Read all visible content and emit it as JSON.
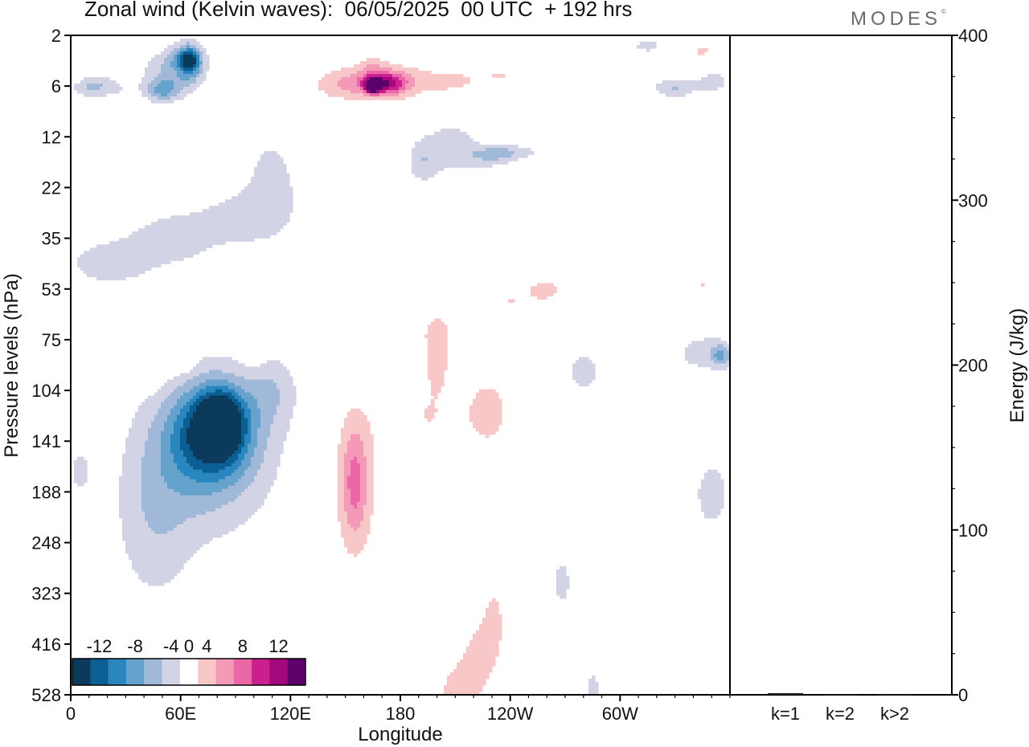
{
  "title": "Zonal wind (Kelvin waves):  06/05/2025  00 UTC  + 192 hrs",
  "brand": "MODES",
  "brand_mark": "©",
  "colors": {
    "neg": [
      "#0b3a5c",
      "#0c5f92",
      "#2a86bf",
      "#66a3cc",
      "#a1b9d8",
      "#d2d4e6"
    ],
    "pos": [
      "#f8c8c8",
      "#f49ab8",
      "#ec67a8",
      "#cc1f8f",
      "#a3087c",
      "#5c006a"
    ],
    "zero": "#ffffff"
  },
  "chart_data": [
    {
      "type": "heatmap",
      "title": "Zonal wind (Kelvin waves):  06/05/2025  00 UTC  + 192 hrs",
      "xlabel": "Longitude",
      "ylabel": "Pressure levels (hPa)",
      "x_ticks": [
        "0",
        "60E",
        "120E",
        "180",
        "120W",
        "60W"
      ],
      "x_tick_degrees": [
        0,
        60,
        120,
        180,
        240,
        300
      ],
      "xlim": [
        0,
        360
      ],
      "y_levels": [
        2,
        6,
        12,
        22,
        35,
        53,
        75,
        104,
        141,
        188,
        248,
        323,
        416,
        528
      ],
      "colorbar": {
        "labels": [
          "-12",
          "-8",
          "-4",
          "0",
          "4",
          "8",
          "12"
        ],
        "bounds": [
          -14,
          -12,
          -10,
          -8,
          -6,
          -4,
          -2,
          2,
          4,
          6,
          8,
          10,
          12,
          14
        ]
      },
      "features": [
        {
          "lon": 0,
          "lvl": 0.8,
          "dlon": 4,
          "dlvl": 0.12,
          "value": 2
        },
        {
          "lon": 30,
          "lvl": 0.8,
          "dlon": 5,
          "dlvl": 0.12,
          "value": 2
        },
        {
          "lon": 60,
          "lvl": 0.75,
          "dlon": 7,
          "dlvl": 0.12,
          "value": 2
        },
        {
          "lon": 110,
          "lvl": 0.5,
          "dlon": 5,
          "dlvl": 0.1,
          "value": 2
        },
        {
          "lon": 150,
          "lvl": 1.0,
          "dlon": 12,
          "dlvl": 0.2,
          "value": 2
        },
        {
          "lon": 165,
          "lvl": 0.6,
          "dlon": 5,
          "dlvl": 0.15,
          "value": 2
        },
        {
          "lon": 280,
          "lvl": 0.8,
          "dlon": 12,
          "dlvl": 0.2,
          "value": 2
        },
        {
          "lon": 310,
          "lvl": 1.0,
          "dlon": 12,
          "dlvl": 0.2,
          "value": 2
        },
        {
          "lon": 330,
          "lvl": 0.8,
          "dlon": 15,
          "dlvl": 0.2,
          "value": 2
        },
        {
          "lon": 345,
          "lvl": 0.3,
          "dlon": 10,
          "dlvl": 0.2,
          "value": 2
        },
        {
          "lon": 8,
          "lvl": 1.0,
          "dlon": 7,
          "dlvl": 0.15,
          "value": -3
        },
        {
          "lon": 20,
          "lvl": 1.0,
          "dlon": 8,
          "dlvl": 0.15,
          "value": -3
        },
        {
          "lon": 50,
          "lvl": 0.8,
          "dlon": 12,
          "dlvl": 0.3,
          "value": -3
        },
        {
          "lon": 62,
          "lvl": 0.6,
          "dlon": 8,
          "dlvl": 0.3,
          "value": -6
        },
        {
          "lon": 65,
          "lvl": 0.5,
          "dlon": 4,
          "dlvl": 0.2,
          "value": -9
        },
        {
          "lon": 50,
          "lvl": 1.1,
          "dlon": 6,
          "dlvl": 0.15,
          "value": -5
        },
        {
          "lon": 170,
          "lvl": 0.9,
          "dlon": 22,
          "dlvl": 0.25,
          "value": 4
        },
        {
          "lon": 172,
          "lvl": 0.95,
          "dlon": 8,
          "dlvl": 0.15,
          "value": 8
        },
        {
          "lon": 165,
          "lvl": 1.0,
          "dlon": 3,
          "dlvl": 0.1,
          "value": 11
        },
        {
          "lon": 210,
          "lvl": 0.9,
          "dlon": 10,
          "dlvl": 0.15,
          "value": 2
        },
        {
          "lon": 235,
          "lvl": 0.8,
          "dlon": 8,
          "dlvl": 0.12,
          "value": 2
        },
        {
          "lon": 310,
          "lvl": 1.0,
          "dlon": 12,
          "dlvl": 0.2,
          "value": -3
        },
        {
          "lon": 330,
          "lvl": 1.0,
          "dlon": 8,
          "dlvl": 0.15,
          "value": -5
        },
        {
          "lon": 350,
          "lvl": 0.9,
          "dlon": 7,
          "dlvl": 0.15,
          "value": -4
        },
        {
          "lon": 315,
          "lvl": 0.2,
          "dlon": 6,
          "dlvl": 0.1,
          "value": -3
        },
        {
          "lon": 127,
          "lvl": 2.2,
          "dlon": 6,
          "dlvl": 0.3,
          "value": 2
        },
        {
          "lon": 208,
          "lvl": 2.2,
          "dlon": 12,
          "dlvl": 0.4,
          "value": -3
        },
        {
          "lon": 192,
          "lvl": 2.5,
          "dlon": 6,
          "dlvl": 0.3,
          "value": -3
        },
        {
          "lon": 230,
          "lvl": 2.4,
          "dlon": 10,
          "dlvl": 0.15,
          "value": -3
        },
        {
          "lon": 240,
          "lvl": 2.3,
          "dlon": 12,
          "dlvl": 0.1,
          "value": -3
        },
        {
          "lon": 335,
          "lvl": 3.3,
          "dlon": 10,
          "dlvl": 0.5,
          "value": 2
        },
        {
          "lon": 300,
          "lvl": 4.9,
          "dlon": 5,
          "dlvl": 0.15,
          "value": 2
        },
        {
          "lon": 345,
          "lvl": 4.9,
          "dlon": 6,
          "dlvl": 0.2,
          "value": 2
        },
        {
          "lon": 240,
          "lvl": 5.2,
          "dlon": 15,
          "dlvl": 0.35,
          "value": 2
        },
        {
          "lon": 260,
          "lvl": 5.0,
          "dlon": 6,
          "dlvl": 0.15,
          "value": 2
        },
        {
          "lon": 6,
          "lvl": 5.0,
          "dlon": 4,
          "dlvl": 0.12,
          "value": 2
        },
        {
          "lon": 20,
          "lvl": 4.5,
          "dlon": 18,
          "dlvl": 0.35,
          "value": -3
        },
        {
          "lon": 55,
          "lvl": 4.0,
          "dlon": 18,
          "dlvl": 0.4,
          "value": -3
        },
        {
          "lon": 95,
          "lvl": 3.6,
          "dlon": 18,
          "dlvl": 0.4,
          "value": -3
        },
        {
          "lon": 110,
          "lvl": 2.8,
          "dlon": 10,
          "dlvl": 0.6,
          "value": -3
        },
        {
          "lon": 270,
          "lvl": 5.8,
          "dlon": 10,
          "dlvl": 0.3,
          "value": 2
        },
        {
          "lon": 200,
          "lvl": 5.8,
          "dlon": 6,
          "dlvl": 0.25,
          "value": 2
        },
        {
          "lon": 345,
          "lvl": 6.3,
          "dlon": 12,
          "dlvl": 0.35,
          "value": -3
        },
        {
          "lon": 355,
          "lvl": 6.3,
          "dlon": 4,
          "dlvl": 0.15,
          "value": -5
        },
        {
          "lon": 280,
          "lvl": 6.6,
          "dlon": 7,
          "dlvl": 0.35,
          "value": -3
        },
        {
          "lon": 35,
          "lvl": 6.8,
          "dlon": 12,
          "dlvl": 0.2,
          "value": 2
        },
        {
          "lon": 60,
          "lvl": 6.5,
          "dlon": 6,
          "dlvl": 0.15,
          "value": 2
        },
        {
          "lon": 100,
          "lvl": 6.3,
          "dlon": 5,
          "dlvl": 0.15,
          "value": 2
        },
        {
          "lon": 75,
          "lvl": 8.3,
          "dlon": 28,
          "dlvl": 1.3,
          "value": -3
        },
        {
          "lon": 75,
          "lvl": 8.0,
          "dlon": 20,
          "dlvl": 0.85,
          "value": -5
        },
        {
          "lon": 78,
          "lvl": 7.8,
          "dlon": 14,
          "dlvl": 0.6,
          "value": -7
        },
        {
          "lon": 82,
          "lvl": 7.6,
          "dlon": 8,
          "dlvl": 0.4,
          "value": -9
        },
        {
          "lon": 110,
          "lvl": 7.0,
          "dlon": 10,
          "dlvl": 0.5,
          "value": -3
        },
        {
          "lon": 45,
          "lvl": 9.6,
          "dlon": 15,
          "dlvl": 1.2,
          "value": -3
        },
        {
          "lon": 5,
          "lvl": 8.6,
          "dlon": 4,
          "dlvl": 0.3,
          "value": -3
        },
        {
          "lon": 155,
          "lvl": 8.9,
          "dlon": 12,
          "dlvl": 1.2,
          "value": 2
        },
        {
          "lon": 155,
          "lvl": 8.8,
          "dlon": 5,
          "dlvl": 0.8,
          "value": 5
        },
        {
          "lon": 195,
          "lvl": 7.5,
          "dlon": 20,
          "dlvl": 0.8,
          "value": 2
        },
        {
          "lon": 230,
          "lvl": 7.4,
          "dlon": 10,
          "dlvl": 0.7,
          "value": 2
        },
        {
          "lon": 200,
          "lvl": 6.3,
          "dlon": 5,
          "dlvl": 0.4,
          "value": 2
        },
        {
          "lon": 300,
          "lvl": 8.5,
          "dlon": 6,
          "dlvl": 1.0,
          "value": 2
        },
        {
          "lon": 325,
          "lvl": 8.3,
          "dlon": 4,
          "dlvl": 0.6,
          "value": 2
        },
        {
          "lon": 345,
          "lvl": 7.5,
          "dlon": 8,
          "dlvl": 0.6,
          "value": 2
        },
        {
          "lon": 350,
          "lvl": 9.0,
          "dlon": 8,
          "dlvl": 0.6,
          "value": -3
        },
        {
          "lon": 268,
          "lvl": 10.8,
          "dlon": 4,
          "dlvl": 0.4,
          "value": -3
        },
        {
          "lon": 232,
          "lvl": 11.5,
          "dlon": 8,
          "dlvl": 1.2,
          "value": 2
        },
        {
          "lon": 218,
          "lvl": 12.5,
          "dlon": 8,
          "dlvl": 0.8,
          "value": 2
        },
        {
          "lon": 260,
          "lvl": 12.1,
          "dlon": 8,
          "dlvl": 0.5,
          "value": 2
        },
        {
          "lon": 208,
          "lvl": 13.0,
          "dlon": 6,
          "dlvl": 0.4,
          "value": 2
        },
        {
          "lon": 285,
          "lvl": 13.0,
          "dlon": 3,
          "dlvl": 0.4,
          "value": -3
        }
      ]
    },
    {
      "type": "bar",
      "categories": [
        "k=1",
        "k=2",
        "k>2"
      ],
      "values": [
        1.0,
        0.3,
        0.3
      ],
      "ylabel": "Energy (J/kg)",
      "ylim": [
        0,
        400
      ],
      "y_ticks": [
        0,
        100,
        200,
        300,
        400
      ]
    }
  ]
}
